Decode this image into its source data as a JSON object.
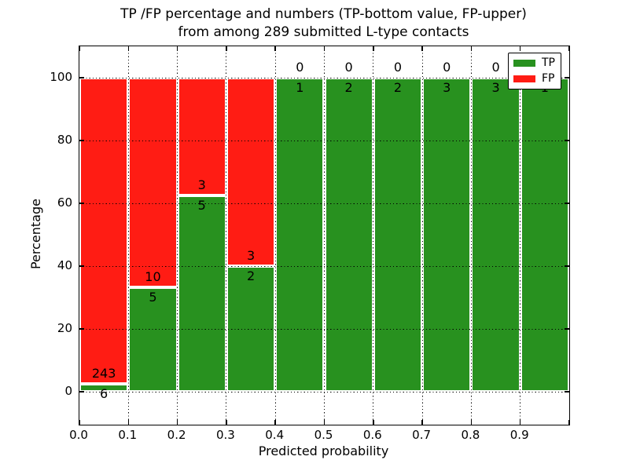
{
  "title": {
    "line1": "TP /FP percentage and numbers (TP-bottom value, FP-upper)",
    "line2": "from among 289 submitted L-type contacts"
  },
  "axes": {
    "xlabel": "Predicted probability",
    "ylabel": "Percentage",
    "x_tick_labels": [
      "0.0",
      "0.1",
      "0.2",
      "0.3",
      "0.4",
      "0.5",
      "0.6",
      "0.7",
      "0.8",
      "0.9"
    ],
    "y_tick_labels": [
      "0",
      "20",
      "40",
      "60",
      "80",
      "100"
    ],
    "y_tick_values": [
      0,
      20,
      40,
      60,
      80,
      100
    ],
    "xlim": [
      0.0,
      1.0
    ],
    "ylim": [
      -10.5,
      110
    ],
    "grid_style": "dotted"
  },
  "legend": {
    "position": "upper right",
    "items": [
      {
        "label": "TP",
        "color": "#28911f"
      },
      {
        "label": "FP",
        "color": "#ff1c14"
      }
    ]
  },
  "colors": {
    "tp": "#28911f",
    "fp": "#ff1c14",
    "bar_edge": "#ffffff",
    "text": "#000000",
    "background": "#ffffff"
  },
  "chart_data": {
    "type": "bar",
    "stacked": true,
    "normalized_to_percent": true,
    "title": "TP /FP percentage and numbers (TP-bottom value, FP-upper) from among 289 submitted L-type contacts",
    "xlabel": "Predicted probability",
    "ylabel": "Percentage",
    "total_contacts": 289,
    "bins": [
      "0.0-0.1",
      "0.1-0.2",
      "0.2-0.3",
      "0.3-0.4",
      "0.4-0.5",
      "0.5-0.6",
      "0.6-0.7",
      "0.7-0.8",
      "0.8-0.9",
      "0.9-1.0"
    ],
    "bin_width": 0.1,
    "series": [
      {
        "name": "TP",
        "values": [
          6,
          5,
          5,
          2,
          1,
          2,
          2,
          3,
          3,
          1
        ]
      },
      {
        "name": "FP",
        "values": [
          243,
          10,
          3,
          3,
          0,
          0,
          0,
          0,
          0,
          0
        ]
      }
    ],
    "tp_percent": [
      2.41,
      33.33,
      62.5,
      40.0,
      100,
      100,
      100,
      100,
      100,
      100
    ],
    "legend_position": "upper right",
    "grid": true
  }
}
